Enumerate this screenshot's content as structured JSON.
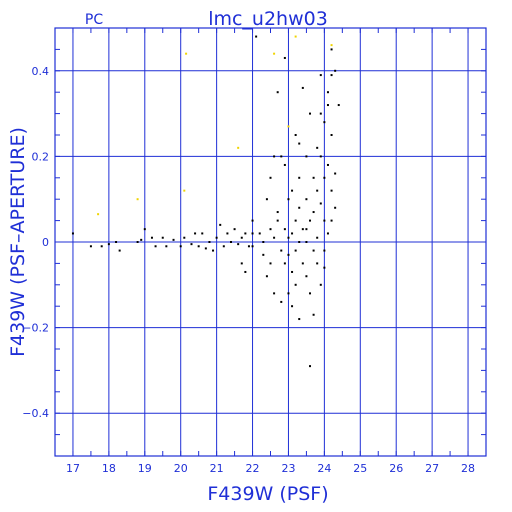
{
  "chart_data": {
    "type": "scatter",
    "title": "lmc_u2hw03",
    "corner_label": "PC",
    "xlabel": "F439W (PSF)",
    "ylabel": "F439W (PSF–APERTURE)",
    "xlim": [
      16.5,
      28.5
    ],
    "ylim": [
      -0.5,
      0.5
    ],
    "x_ticks": [
      17,
      18,
      19,
      20,
      21,
      22,
      23,
      24,
      25,
      26,
      27,
      28
    ],
    "y_ticks": [
      -0.4,
      -0.2,
      0,
      0.2,
      0.4
    ],
    "y_tick_labels": [
      "−0.4",
      "−0.2",
      "0",
      "0.2",
      "0.4"
    ],
    "grid": true,
    "colors": {
      "axes": "#1f2fd6",
      "points": "#000000",
      "highlight": "#f0d400"
    },
    "series": [
      {
        "color": "#000000",
        "points": [
          [
            17.0,
            0.02
          ],
          [
            17.5,
            -0.01
          ],
          [
            17.8,
            -0.01
          ],
          [
            18.0,
            -0.005
          ],
          [
            18.2,
            0.0
          ],
          [
            18.3,
            -0.02
          ],
          [
            18.8,
            0.0
          ],
          [
            18.9,
            0.005
          ],
          [
            19.0,
            0.03
          ],
          [
            19.2,
            0.01
          ],
          [
            19.3,
            -0.01
          ],
          [
            19.5,
            0.01
          ],
          [
            19.6,
            -0.01
          ],
          [
            19.8,
            0.005
          ],
          [
            20.0,
            -0.01
          ],
          [
            20.1,
            0.01
          ],
          [
            20.3,
            -0.005
          ],
          [
            20.4,
            0.02
          ],
          [
            20.5,
            -0.01
          ],
          [
            20.6,
            0.02
          ],
          [
            20.7,
            -0.015
          ],
          [
            20.8,
            0.0
          ],
          [
            20.9,
            -0.02
          ],
          [
            21.0,
            0.01
          ],
          [
            21.1,
            0.04
          ],
          [
            21.2,
            -0.01
          ],
          [
            21.3,
            0.02
          ],
          [
            21.4,
            0.0
          ],
          [
            21.5,
            0.03
          ],
          [
            21.6,
            -0.005
          ],
          [
            21.7,
            0.01
          ],
          [
            21.8,
            0.02
          ],
          [
            21.9,
            -0.01
          ],
          [
            21.7,
            -0.05
          ],
          [
            21.8,
            -0.07
          ],
          [
            22.0,
            0.05
          ],
          [
            22.0,
            0.02
          ],
          [
            22.0,
            -0.01
          ],
          [
            22.1,
            0.48
          ],
          [
            22.2,
            0.02
          ],
          [
            22.3,
            0.0
          ],
          [
            22.3,
            -0.03
          ],
          [
            22.4,
            0.1
          ],
          [
            22.4,
            -0.08
          ],
          [
            22.5,
            0.03
          ],
          [
            22.5,
            -0.05
          ],
          [
            22.5,
            0.15
          ],
          [
            22.6,
            0.01
          ],
          [
            22.6,
            -0.12
          ],
          [
            22.7,
            0.07
          ],
          [
            22.7,
            0.35
          ],
          [
            22.7,
            0.05
          ],
          [
            22.8,
            -0.02
          ],
          [
            22.8,
            -0.14
          ],
          [
            22.9,
            0.18
          ],
          [
            22.9,
            0.03
          ],
          [
            22.9,
            0.43
          ],
          [
            23.0,
            0.1
          ],
          [
            23.0,
            -0.03
          ],
          [
            23.0,
            -0.12
          ],
          [
            23.0,
            0.01
          ],
          [
            23.1,
            0.02
          ],
          [
            23.1,
            0.12
          ],
          [
            23.1,
            -0.07
          ],
          [
            23.1,
            -0.15
          ],
          [
            23.2,
            0.05
          ],
          [
            23.2,
            0.25
          ],
          [
            23.2,
            -0.02
          ],
          [
            23.2,
            -0.1
          ],
          [
            23.3,
            0.08
          ],
          [
            23.3,
            0.0
          ],
          [
            23.3,
            -0.18
          ],
          [
            23.3,
            0.15
          ],
          [
            23.4,
            0.03
          ],
          [
            23.4,
            0.36
          ],
          [
            23.4,
            -0.05
          ],
          [
            23.5,
            0.1
          ],
          [
            23.5,
            -0.08
          ],
          [
            23.5,
            0.2
          ],
          [
            23.5,
            0.0
          ],
          [
            23.6,
            0.05
          ],
          [
            23.6,
            -0.12
          ],
          [
            23.6,
            0.3
          ],
          [
            23.6,
            -0.29
          ],
          [
            23.7,
            0.15
          ],
          [
            23.7,
            -0.02
          ],
          [
            23.7,
            0.07
          ],
          [
            23.7,
            -0.17
          ],
          [
            23.8,
            0.12
          ],
          [
            23.8,
            0.22
          ],
          [
            23.8,
            0.01
          ],
          [
            23.8,
            -0.05
          ],
          [
            23.9,
            0.2
          ],
          [
            23.9,
            0.09
          ],
          [
            23.9,
            -0.1
          ],
          [
            23.9,
            0.3
          ],
          [
            23.9,
            0.39
          ],
          [
            24.0,
            0.05
          ],
          [
            24.0,
            0.15
          ],
          [
            24.0,
            -0.02
          ],
          [
            24.0,
            0.28
          ],
          [
            24.0,
            -0.06
          ],
          [
            24.1,
            0.32
          ],
          [
            24.1,
            0.18
          ],
          [
            24.1,
            0.02
          ],
          [
            24.1,
            0.35
          ],
          [
            24.2,
            0.12
          ],
          [
            24.2,
            0.25
          ],
          [
            24.2,
            0.05
          ],
          [
            24.2,
            0.45
          ],
          [
            24.3,
            0.4
          ],
          [
            24.3,
            0.16
          ],
          [
            24.3,
            0.08
          ],
          [
            24.4,
            0.32
          ],
          [
            24.2,
            0.39
          ],
          [
            23.3,
            0.23
          ],
          [
            22.8,
            0.2
          ],
          [
            22.6,
            0.2
          ],
          [
            23.5,
            0.03
          ],
          [
            22.9,
            -0.05
          ]
        ]
      },
      {
        "color": "#f0d400",
        "points": [
          [
            17.7,
            0.065
          ],
          [
            18.8,
            0.1
          ],
          [
            20.15,
            0.44
          ],
          [
            20.1,
            0.12
          ],
          [
            21.6,
            0.22
          ],
          [
            22.6,
            0.44
          ],
          [
            23.2,
            0.48
          ],
          [
            23.0,
            0.27
          ],
          [
            24.2,
            0.46
          ]
        ]
      }
    ]
  }
}
